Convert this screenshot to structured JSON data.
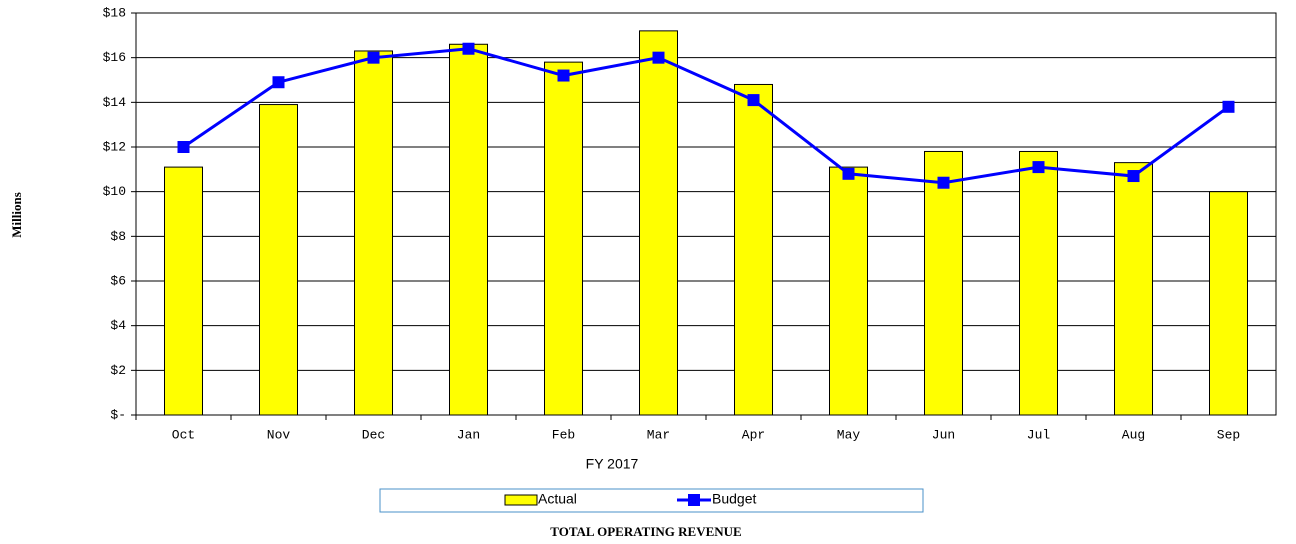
{
  "chart_data": {
    "type": "combo",
    "title": "TOTAL OPERATING REVENUE",
    "x_label": "FY 2017",
    "y_label": "Millions",
    "categories": [
      "Oct",
      "Nov",
      "Dec",
      "Jan",
      "Feb",
      "Mar",
      "Apr",
      "May",
      "Jun",
      "Jul",
      "Aug",
      "Sep"
    ],
    "series": [
      {
        "name": "Actual",
        "type": "bar",
        "color": "#ffff00",
        "values": [
          11.1,
          13.9,
          16.3,
          16.6,
          15.8,
          17.2,
          14.8,
          11.1,
          11.8,
          11.8,
          11.3,
          10.0
        ]
      },
      {
        "name": "Budget",
        "type": "line",
        "color": "#0000ff",
        "values": [
          12.0,
          14.9,
          16.0,
          16.4,
          15.2,
          16.0,
          14.1,
          10.8,
          10.4,
          11.1,
          10.7,
          13.8
        ]
      }
    ],
    "ylim": [
      0,
      18
    ],
    "yticks": [
      {
        "value": 0,
        "label": "$-"
      },
      {
        "value": 2,
        "label": "$2"
      },
      {
        "value": 4,
        "label": "$4"
      },
      {
        "value": 6,
        "label": "$6"
      },
      {
        "value": 8,
        "label": "$8"
      },
      {
        "value": 10,
        "label": "$10"
      },
      {
        "value": 12,
        "label": "$12"
      },
      {
        "value": 14,
        "label": "$14"
      },
      {
        "value": 16,
        "label": "$16"
      },
      {
        "value": 18,
        "label": "$18"
      }
    ],
    "grid": true,
    "legend": "bottom"
  }
}
